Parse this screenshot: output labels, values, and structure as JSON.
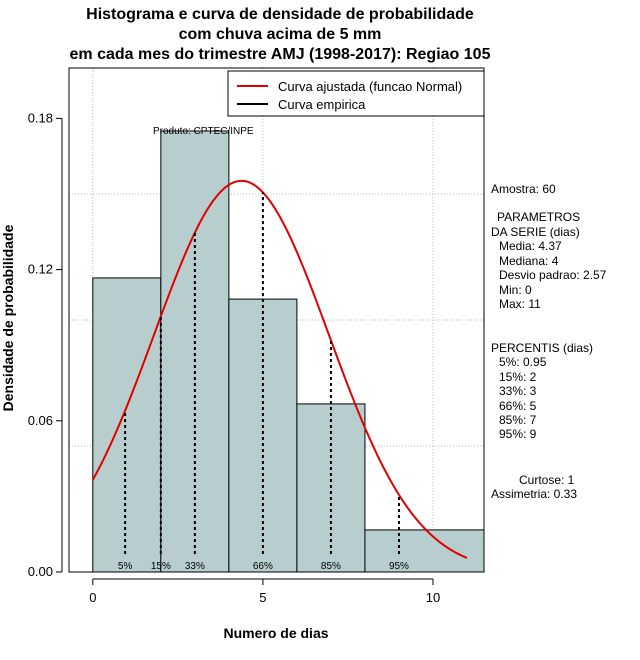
{
  "chart_data": {
    "type": "bar",
    "title": [
      "Histograma e curva de densidade de probabilidade",
      "com chuva acima de 5 mm",
      "em cada mes do trimestre AMJ (1998-2017): Regiao 105"
    ],
    "xlabel": "Numero de dias",
    "ylabel": "Densidade de probabilidade",
    "xlim": [
      -0.7,
      11.5
    ],
    "ylim": [
      0,
      0.2
    ],
    "x_ticks": [
      0,
      5,
      10
    ],
    "y_ticks": [
      0.0,
      0.06,
      0.12,
      0.18
    ],
    "y_tick_labels": [
      "0.00",
      "0.06",
      "0.12",
      "0.18"
    ],
    "grid": true,
    "bins": [
      {
        "x0": 0,
        "x1": 2,
        "density": 0.1167
      },
      {
        "x0": 2,
        "x1": 4,
        "density": 0.175
      },
      {
        "x0": 4,
        "x1": 6,
        "density": 0.1083
      },
      {
        "x0": 6,
        "x1": 8,
        "density": 0.0667
      },
      {
        "x0": 8,
        "x1": 11.5,
        "density": 0.0167
      }
    ],
    "bar_color": "#b8cece",
    "curve": {
      "name": "Curva ajustada (funcao Normal)",
      "mean": 4.37,
      "sd": 2.57,
      "x_from": 0,
      "x_to": 11,
      "color": "#e00000"
    },
    "empirical_curve": {
      "name": "Curva empirica",
      "color": "#000000"
    },
    "legend_position": "top-right",
    "percentiles": [
      {
        "label": "5%",
        "x": 0.95
      },
      {
        "label": "15%",
        "x": 2
      },
      {
        "label": "33%",
        "x": 3
      },
      {
        "label": "66%",
        "x": 5
      },
      {
        "label": "85%",
        "x": 7
      },
      {
        "label": "95%",
        "x": 9
      }
    ],
    "annotation": "Produto: CPTEC/INPE"
  },
  "stats": {
    "amostra": "Amostra: 60",
    "parametros_title_1": "PARAMETROS",
    "parametros_title_2": "DA SERIE (dias)",
    "media": "Media: 4.37",
    "mediana": "Mediana: 4",
    "desvio": "Desvio padrao: 2.57",
    "min": "Min: 0",
    "max": "Max: 11",
    "percentis_title": "PERCENTIS (dias)",
    "p5": "5%: 0.95",
    "p15": "15%: 2",
    "p33": "33%: 3",
    "p66": "66%: 5",
    "p85": "85%: 7",
    "p95": "95%: 9",
    "curtose": "Curtose: 1",
    "assimetria": "Assimetria: 0.33"
  }
}
